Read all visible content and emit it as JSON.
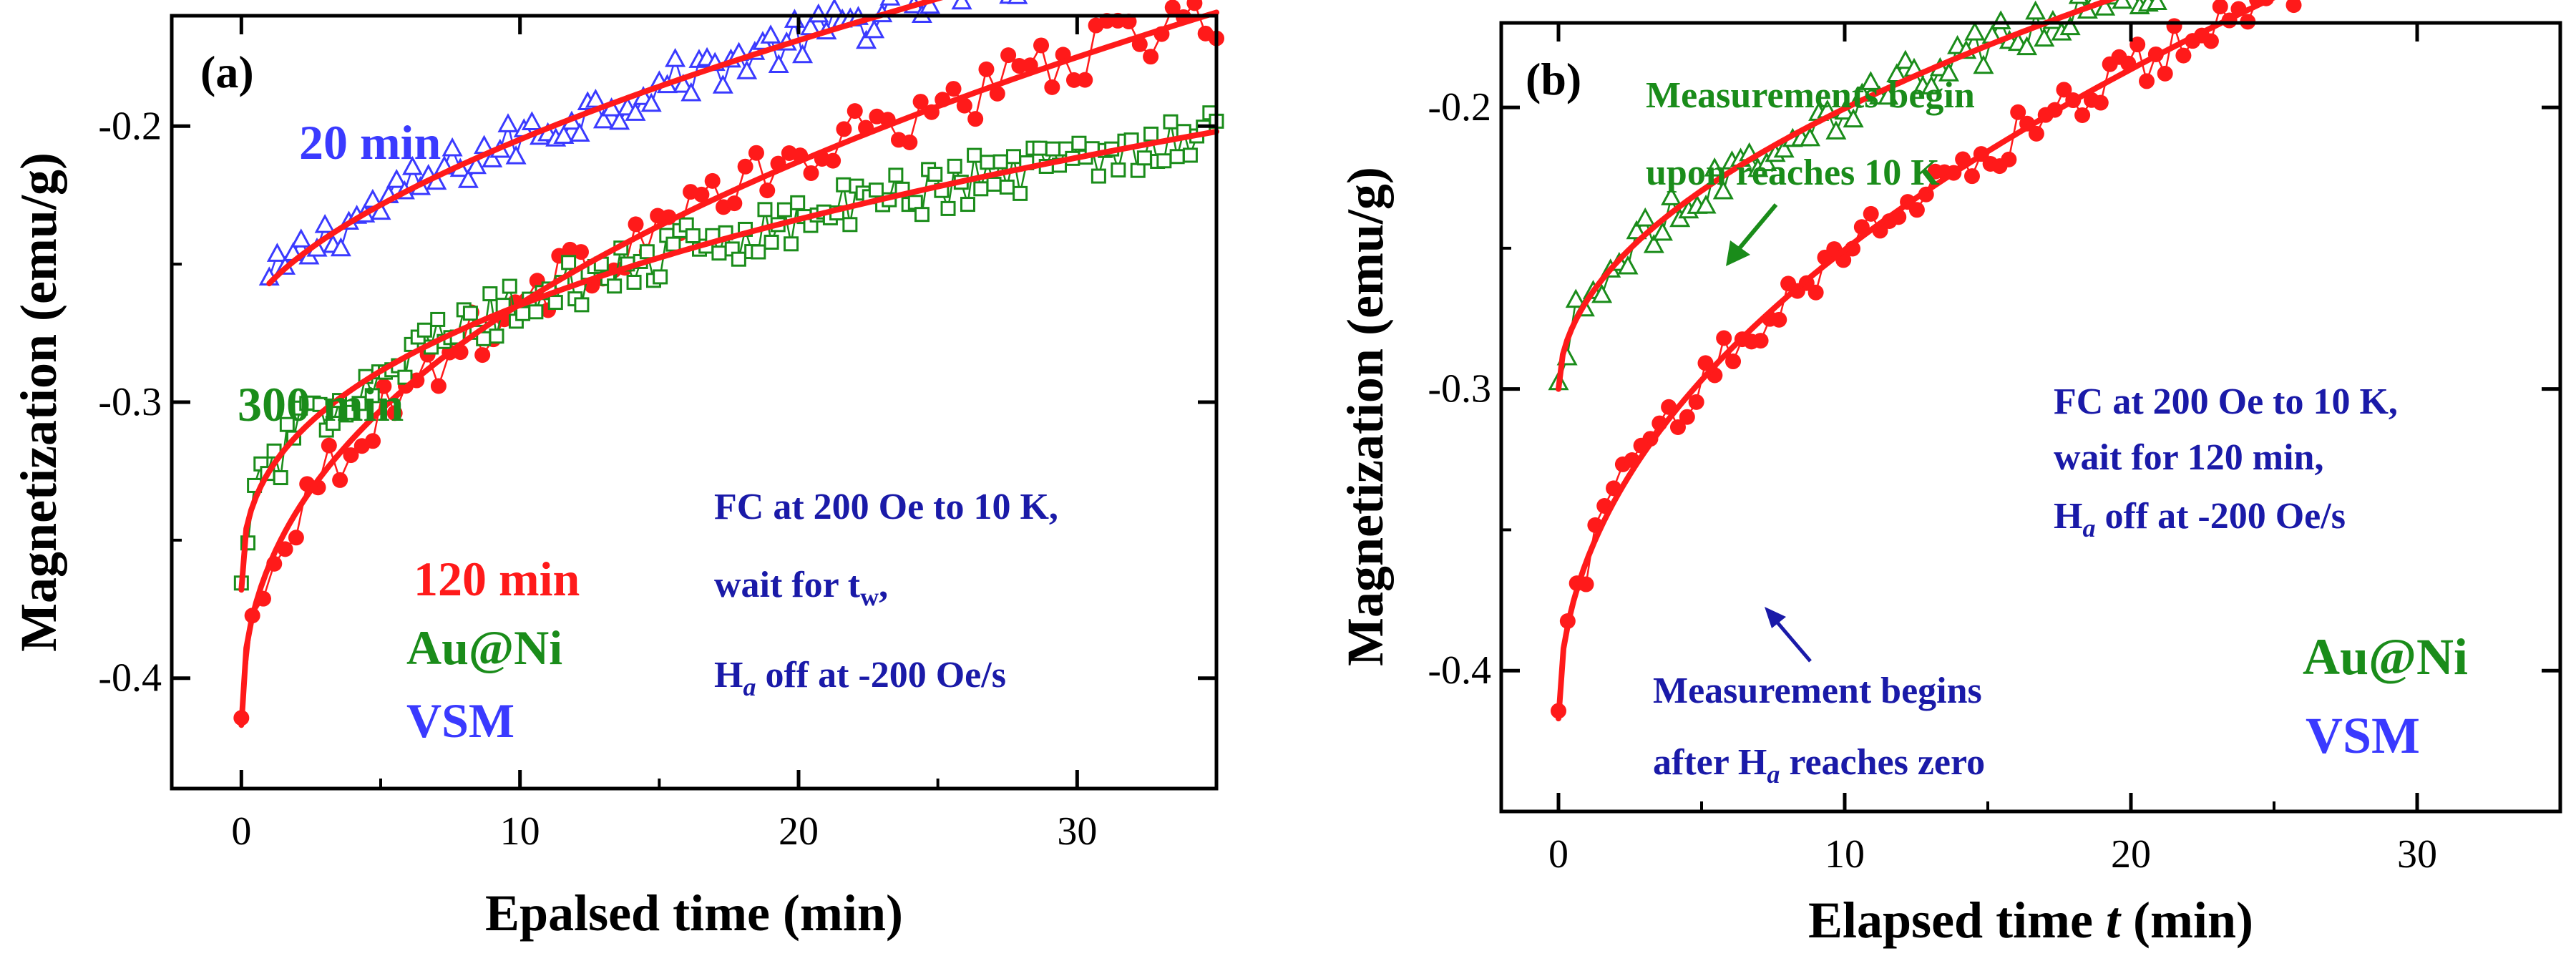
{
  "chart_data": [
    {
      "type": "scatter",
      "panel_label": "(a)",
      "xlabel": "Epalsed time (min)",
      "ylabel": "Magnetization (emu/g)",
      "xlim": [
        -2.5,
        35
      ],
      "ylim": [
        -0.44,
        -0.16
      ],
      "xticks": [
        0,
        10,
        20,
        30
      ],
      "xtick_labels": [
        "0",
        "10",
        "20",
        "30"
      ],
      "yticks": [
        -0.4,
        -0.3,
        -0.2
      ],
      "ytick_labels": [
        "-0.4",
        "-0.3",
        "-0.2"
      ],
      "series": [
        {
          "name": "20 min",
          "marker": "triangle",
          "color": "#3a3aff",
          "a": -0.2745,
          "b": 0.0175,
          "p": 0.6,
          "x0": 1,
          "x1": 35,
          "n": 120,
          "noise": 0.008
        },
        {
          "name": "120 min",
          "marker": "circle",
          "color": "#ff1a1a",
          "a": -0.417,
          "b": 0.058,
          "p": 0.42,
          "x0": 0,
          "x1": 35,
          "n": 90,
          "noise": 0.01
        },
        {
          "name": "300 min",
          "marker": "square",
          "color": "#1a8c1a",
          "a": -0.368,
          "b": 0.043,
          "p": 0.38,
          "x0": 0,
          "x1": 35,
          "n": 150,
          "noise": 0.009
        }
      ],
      "fits": [
        {
          "series": "20 min",
          "color": "#ff1a1a",
          "a": -0.2745,
          "b": 0.0175,
          "p": 0.6,
          "x0": 1,
          "x1": 35
        },
        {
          "series": "120 min",
          "color": "#ff1a1a",
          "a": -0.417,
          "b": 0.058,
          "p": 0.42,
          "x0": 0,
          "x1": 35
        },
        {
          "series": "300 min",
          "color": "#ff1a1a",
          "a": -0.368,
          "b": 0.043,
          "p": 0.38,
          "x0": 0,
          "x1": 35
        }
      ],
      "annotations": {
        "label_20": "20 min",
        "label_300": "300 min",
        "label_120": "120 min",
        "sample": "Au@Ni",
        "method": "VSM",
        "protocol_line1": "FC at 200 Oe to 10 K,",
        "protocol_line2_pre": "wait for t",
        "protocol_line2_sub": "w",
        "protocol_line2_post": ",",
        "protocol_line3_h": "H",
        "protocol_line3_sub": "a",
        "protocol_line3_post": " off at -200 Oe/s"
      }
    },
    {
      "type": "scatter",
      "panel_label": "(b)",
      "xlabel_pre": "Elapsed time ",
      "xlabel_var": "t",
      "xlabel_post": " (min)",
      "ylabel": "Magnetization (emu/g)",
      "xlim": [
        -2,
        35
      ],
      "ylim": [
        -0.45,
        -0.17
      ],
      "xticks": [
        0,
        10,
        20,
        30
      ],
      "xtick_labels": [
        "0",
        "10",
        "20",
        "30"
      ],
      "yticks": [
        -0.4,
        -0.3,
        -0.2
      ],
      "ytick_labels": [
        "-0.4",
        "-0.3",
        "-0.2"
      ],
      "series": [
        {
          "name": "Measurements begin upon reaches 10 K",
          "marker": "triangle",
          "color": "#1a8c1a",
          "a": -0.3,
          "b": 0.0315,
          "p": 0.5,
          "x0": 0,
          "x1": 30,
          "n": 100,
          "noise": 0.007
        },
        {
          "name": "Measurement begins after Ha reaches zero",
          "marker": "circle",
          "color": "#ff1a1a",
          "a": -0.417,
          "b": 0.0564,
          "p": 0.47,
          "x0": 0,
          "x1": 35,
          "n": 110,
          "noise": 0.008
        }
      ],
      "fits": [
        {
          "series": "green",
          "color": "#ff1a1a",
          "a": -0.3,
          "b": 0.0315,
          "p": 0.5,
          "x0": 0,
          "x1": 30
        },
        {
          "series": "red",
          "color": "#ff1a1a",
          "a": -0.417,
          "b": 0.0564,
          "p": 0.47,
          "x0": 0,
          "x1": 35
        }
      ],
      "annotations": {
        "green_line1": "Measurements begin",
        "green_line2": "upon reaches 10 K",
        "red_line1": "Measurement begins",
        "red_line2_pre": "after H",
        "red_line2_sub": "a",
        "red_line2_post": " reaches zero",
        "protocol_line1": "FC at 200 Oe to 10 K,",
        "protocol_line2": "wait for 120 min,",
        "protocol_line3_h": "H",
        "protocol_line3_sub": "a",
        "protocol_line3_post": " off at -200 Oe/s",
        "sample": "Au@Ni",
        "method": "VSM"
      }
    }
  ]
}
